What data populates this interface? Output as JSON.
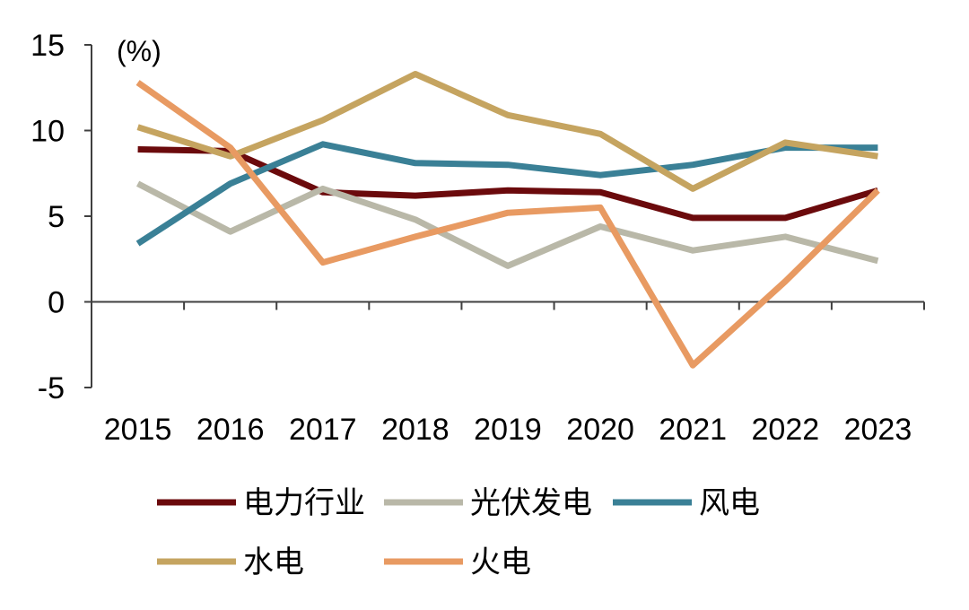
{
  "chart_data": {
    "type": "line",
    "unit_label": "(%)",
    "x": [
      "2015",
      "2016",
      "2017",
      "2018",
      "2019",
      "2020",
      "2021",
      "2022",
      "2023"
    ],
    "ylim": [
      -5,
      15
    ],
    "yticks": [
      "15",
      "10",
      "5",
      "0",
      "-5"
    ],
    "ytick_values": [
      15,
      10,
      5,
      0,
      -5
    ],
    "grid": false,
    "legend_position": "bottom",
    "series": [
      {
        "name": "电力行业",
        "color": "#6b0a0c",
        "values": [
          8.9,
          8.8,
          6.4,
          6.2,
          6.5,
          6.4,
          4.9,
          4.9,
          6.5
        ]
      },
      {
        "name": "光伏发电",
        "color": "#b9b8a8",
        "values": [
          6.9,
          4.1,
          6.6,
          4.8,
          2.1,
          4.4,
          3.0,
          3.8,
          2.4
        ]
      },
      {
        "name": "风电",
        "color": "#3a8096",
        "values": [
          3.4,
          6.9,
          9.2,
          8.1,
          8.0,
          7.4,
          8.0,
          9.0,
          9.0
        ]
      },
      {
        "name": "水电",
        "color": "#c5a460",
        "values": [
          10.2,
          8.5,
          10.6,
          13.3,
          10.9,
          9.8,
          6.6,
          9.3,
          8.5
        ]
      },
      {
        "name": "火电",
        "color": "#e89a62",
        "values": [
          12.8,
          9.0,
          2.3,
          3.8,
          5.2,
          5.5,
          -3.7,
          1.2,
          6.5
        ]
      }
    ]
  }
}
